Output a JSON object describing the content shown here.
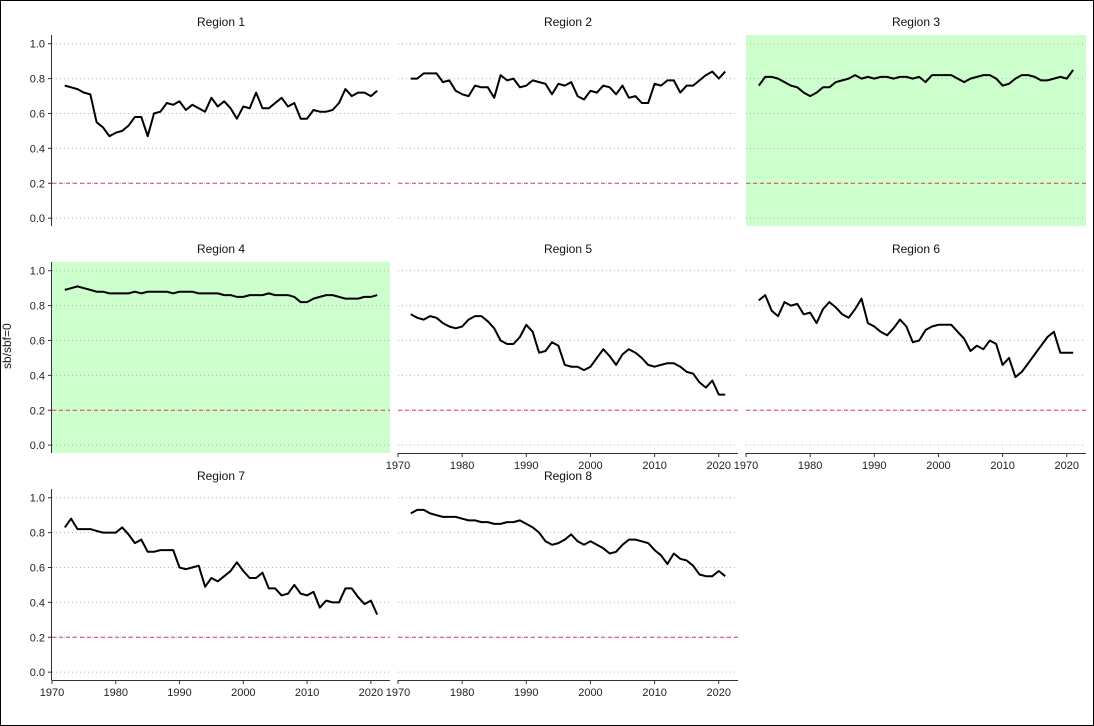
{
  "figure": {
    "ylabel": "sb/sbf=0",
    "reference_line": {
      "y": 0.2,
      "color": "#e0404a",
      "style": "dashed"
    },
    "highlight_color": "#ccffcc",
    "line_color": "#000000",
    "grid": "horizontal dotted"
  },
  "chart_data": [
    {
      "type": "line",
      "title": "Region 1",
      "highlighted": false,
      "xlim": [
        1970,
        2023
      ],
      "ylim": [
        0,
        1
      ],
      "xticks": [
        "1970",
        "1980",
        "1990",
        "2000",
        "2010",
        "2020"
      ],
      "yticks": [
        "0.0",
        "0.2",
        "0.4",
        "0.6",
        "0.8",
        "1.0"
      ],
      "x": [
        1972,
        1973,
        1974,
        1975,
        1976,
        1977,
        1978,
        1979,
        1980,
        1981,
        1982,
        1983,
        1984,
        1985,
        1986,
        1987,
        1988,
        1989,
        1990,
        1991,
        1992,
        1993,
        1994,
        1995,
        1996,
        1997,
        1998,
        1999,
        2000,
        2001,
        2002,
        2003,
        2004,
        2005,
        2006,
        2007,
        2008,
        2009,
        2010,
        2011,
        2012,
        2013,
        2014,
        2015,
        2016,
        2017,
        2018,
        2019,
        2020,
        2021
      ],
      "series": [
        {
          "values": [
            0.76,
            0.75,
            0.74,
            0.72,
            0.71,
            0.55,
            0.52,
            0.47,
            0.49,
            0.5,
            0.53,
            0.58,
            0.58,
            0.47,
            0.6,
            0.61,
            0.66,
            0.65,
            0.67,
            0.62,
            0.65,
            0.63,
            0.61,
            0.69,
            0.64,
            0.67,
            0.63,
            0.57,
            0.64,
            0.63,
            0.72,
            0.63,
            0.63,
            0.66,
            0.69,
            0.64,
            0.66,
            0.57,
            0.57,
            0.62,
            0.61,
            0.61,
            0.62,
            0.66,
            0.74,
            0.7,
            0.72,
            0.72,
            0.7,
            0.73
          ]
        }
      ]
    },
    {
      "type": "line",
      "title": "Region 2",
      "highlighted": false,
      "xlim": [
        1970,
        2023
      ],
      "ylim": [
        0,
        1
      ],
      "xticks": [
        "1970",
        "1980",
        "1990",
        "2000",
        "2010",
        "2020"
      ],
      "yticks": [
        "0.0",
        "0.2",
        "0.4",
        "0.6",
        "0.8",
        "1.0"
      ],
      "x": [
        1972,
        1973,
        1974,
        1975,
        1976,
        1977,
        1978,
        1979,
        1980,
        1981,
        1982,
        1983,
        1984,
        1985,
        1986,
        1987,
        1988,
        1989,
        1990,
        1991,
        1992,
        1993,
        1994,
        1995,
        1996,
        1997,
        1998,
        1999,
        2000,
        2001,
        2002,
        2003,
        2004,
        2005,
        2006,
        2007,
        2008,
        2009,
        2010,
        2011,
        2012,
        2013,
        2014,
        2015,
        2016,
        2017,
        2018,
        2019,
        2020,
        2021
      ],
      "series": [
        {
          "values": [
            0.8,
            0.8,
            0.83,
            0.83,
            0.83,
            0.78,
            0.79,
            0.73,
            0.71,
            0.7,
            0.76,
            0.75,
            0.75,
            0.69,
            0.82,
            0.79,
            0.8,
            0.75,
            0.76,
            0.79,
            0.78,
            0.77,
            0.71,
            0.77,
            0.76,
            0.78,
            0.7,
            0.68,
            0.73,
            0.72,
            0.76,
            0.75,
            0.71,
            0.76,
            0.69,
            0.7,
            0.66,
            0.66,
            0.77,
            0.76,
            0.79,
            0.79,
            0.72,
            0.76,
            0.76,
            0.79,
            0.82,
            0.84,
            0.8,
            0.84
          ]
        }
      ]
    },
    {
      "type": "line",
      "title": "Region 3",
      "highlighted": true,
      "xlim": [
        1970,
        2023
      ],
      "ylim": [
        0,
        1
      ],
      "xticks": [
        "1970",
        "1980",
        "1990",
        "2000",
        "2010",
        "2020"
      ],
      "yticks": [
        "0.0",
        "0.2",
        "0.4",
        "0.6",
        "0.8",
        "1.0"
      ],
      "x": [
        1972,
        1973,
        1974,
        1975,
        1976,
        1977,
        1978,
        1979,
        1980,
        1981,
        1982,
        1983,
        1984,
        1985,
        1986,
        1987,
        1988,
        1989,
        1990,
        1991,
        1992,
        1993,
        1994,
        1995,
        1996,
        1997,
        1998,
        1999,
        2000,
        2001,
        2002,
        2003,
        2004,
        2005,
        2006,
        2007,
        2008,
        2009,
        2010,
        2011,
        2012,
        2013,
        2014,
        2015,
        2016,
        2017,
        2018,
        2019,
        2020,
        2021
      ],
      "series": [
        {
          "values": [
            0.76,
            0.81,
            0.81,
            0.8,
            0.78,
            0.76,
            0.75,
            0.72,
            0.7,
            0.72,
            0.75,
            0.75,
            0.78,
            0.79,
            0.8,
            0.82,
            0.8,
            0.81,
            0.8,
            0.81,
            0.81,
            0.8,
            0.81,
            0.81,
            0.8,
            0.81,
            0.78,
            0.82,
            0.82,
            0.82,
            0.82,
            0.8,
            0.78,
            0.8,
            0.81,
            0.82,
            0.82,
            0.8,
            0.76,
            0.77,
            0.8,
            0.82,
            0.82,
            0.81,
            0.79,
            0.79,
            0.8,
            0.81,
            0.8,
            0.85
          ]
        }
      ]
    },
    {
      "type": "line",
      "title": "Region 4",
      "highlighted": true,
      "xlim": [
        1970,
        2023
      ],
      "ylim": [
        0,
        1
      ],
      "xticks": [
        "1970",
        "1980",
        "1990",
        "2000",
        "2010",
        "2020"
      ],
      "yticks": [
        "0.0",
        "0.2",
        "0.4",
        "0.6",
        "0.8",
        "1.0"
      ],
      "x": [
        1972,
        1973,
        1974,
        1975,
        1976,
        1977,
        1978,
        1979,
        1980,
        1981,
        1982,
        1983,
        1984,
        1985,
        1986,
        1987,
        1988,
        1989,
        1990,
        1991,
        1992,
        1993,
        1994,
        1995,
        1996,
        1997,
        1998,
        1999,
        2000,
        2001,
        2002,
        2003,
        2004,
        2005,
        2006,
        2007,
        2008,
        2009,
        2010,
        2011,
        2012,
        2013,
        2014,
        2015,
        2016,
        2017,
        2018,
        2019,
        2020,
        2021
      ],
      "series": [
        {
          "values": [
            0.89,
            0.9,
            0.91,
            0.9,
            0.89,
            0.88,
            0.88,
            0.87,
            0.87,
            0.87,
            0.87,
            0.88,
            0.87,
            0.88,
            0.88,
            0.88,
            0.88,
            0.87,
            0.88,
            0.88,
            0.88,
            0.87,
            0.87,
            0.87,
            0.87,
            0.86,
            0.86,
            0.85,
            0.85,
            0.86,
            0.86,
            0.86,
            0.87,
            0.86,
            0.86,
            0.86,
            0.85,
            0.82,
            0.82,
            0.84,
            0.85,
            0.86,
            0.86,
            0.85,
            0.84,
            0.84,
            0.84,
            0.85,
            0.85,
            0.86
          ]
        }
      ]
    },
    {
      "type": "line",
      "title": "Region 5",
      "highlighted": false,
      "xlim": [
        1970,
        2023
      ],
      "ylim": [
        0,
        1
      ],
      "xticks": [
        "1970",
        "1980",
        "1990",
        "2000",
        "2010",
        "2020"
      ],
      "yticks": [
        "0.0",
        "0.2",
        "0.4",
        "0.6",
        "0.8",
        "1.0"
      ],
      "x": [
        1972,
        1973,
        1974,
        1975,
        1976,
        1977,
        1978,
        1979,
        1980,
        1981,
        1982,
        1983,
        1984,
        1985,
        1986,
        1987,
        1988,
        1989,
        1990,
        1991,
        1992,
        1993,
        1994,
        1995,
        1996,
        1997,
        1998,
        1999,
        2000,
        2001,
        2002,
        2003,
        2004,
        2005,
        2006,
        2007,
        2008,
        2009,
        2010,
        2011,
        2012,
        2013,
        2014,
        2015,
        2016,
        2017,
        2018,
        2019,
        2020,
        2021
      ],
      "series": [
        {
          "values": [
            0.75,
            0.73,
            0.72,
            0.74,
            0.73,
            0.7,
            0.68,
            0.67,
            0.68,
            0.72,
            0.74,
            0.74,
            0.71,
            0.67,
            0.6,
            0.58,
            0.58,
            0.62,
            0.69,
            0.65,
            0.53,
            0.54,
            0.59,
            0.57,
            0.46,
            0.45,
            0.45,
            0.43,
            0.45,
            0.5,
            0.55,
            0.51,
            0.46,
            0.52,
            0.55,
            0.53,
            0.5,
            0.46,
            0.45,
            0.46,
            0.47,
            0.47,
            0.45,
            0.42,
            0.41,
            0.36,
            0.33,
            0.37,
            0.29,
            0.29
          ]
        }
      ]
    },
    {
      "type": "line",
      "title": "Region 6",
      "highlighted": false,
      "xlim": [
        1970,
        2023
      ],
      "ylim": [
        0,
        1
      ],
      "xticks": [
        "1970",
        "1980",
        "1990",
        "2000",
        "2010",
        "2020"
      ],
      "yticks": [
        "0.0",
        "0.2",
        "0.4",
        "0.6",
        "0.8",
        "1.0"
      ],
      "x": [
        1972,
        1973,
        1974,
        1975,
        1976,
        1977,
        1978,
        1979,
        1980,
        1981,
        1982,
        1983,
        1984,
        1985,
        1986,
        1987,
        1988,
        1989,
        1990,
        1991,
        1992,
        1993,
        1994,
        1995,
        1996,
        1997,
        1998,
        1999,
        2000,
        2001,
        2002,
        2003,
        2004,
        2005,
        2006,
        2007,
        2008,
        2009,
        2010,
        2011,
        2012,
        2013,
        2014,
        2015,
        2016,
        2017,
        2018,
        2019,
        2020,
        2021
      ],
      "series": [
        {
          "values": [
            0.83,
            0.86,
            0.77,
            0.74,
            0.82,
            0.8,
            0.81,
            0.75,
            0.76,
            0.7,
            0.78,
            0.82,
            0.79,
            0.75,
            0.73,
            0.78,
            0.84,
            0.7,
            0.68,
            0.65,
            0.63,
            0.67,
            0.72,
            0.68,
            0.59,
            0.6,
            0.66,
            0.68,
            0.69,
            0.69,
            0.69,
            0.65,
            0.61,
            0.54,
            0.57,
            0.55,
            0.6,
            0.58,
            0.46,
            0.5,
            0.39,
            0.42,
            0.47,
            0.52,
            0.57,
            0.62,
            0.65,
            0.53,
            0.53,
            0.53
          ]
        }
      ]
    },
    {
      "type": "line",
      "title": "Region 7",
      "highlighted": false,
      "xlim": [
        1970,
        2023
      ],
      "ylim": [
        0,
        1
      ],
      "xticks": [
        "1970",
        "1980",
        "1990",
        "2000",
        "2010",
        "2020"
      ],
      "yticks": [
        "0.0",
        "0.2",
        "0.4",
        "0.6",
        "0.8",
        "1.0"
      ],
      "x": [
        1972,
        1973,
        1974,
        1975,
        1976,
        1977,
        1978,
        1979,
        1980,
        1981,
        1982,
        1983,
        1984,
        1985,
        1986,
        1987,
        1988,
        1989,
        1990,
        1991,
        1992,
        1993,
        1994,
        1995,
        1996,
        1997,
        1998,
        1999,
        2000,
        2001,
        2002,
        2003,
        2004,
        2005,
        2006,
        2007,
        2008,
        2009,
        2010,
        2011,
        2012,
        2013,
        2014,
        2015,
        2016,
        2017,
        2018,
        2019,
        2020,
        2021
      ],
      "series": [
        {
          "values": [
            0.83,
            0.88,
            0.82,
            0.82,
            0.82,
            0.81,
            0.8,
            0.8,
            0.8,
            0.83,
            0.79,
            0.74,
            0.76,
            0.69,
            0.69,
            0.7,
            0.7,
            0.7,
            0.6,
            0.59,
            0.6,
            0.61,
            0.49,
            0.54,
            0.52,
            0.55,
            0.58,
            0.63,
            0.58,
            0.54,
            0.54,
            0.57,
            0.48,
            0.48,
            0.44,
            0.45,
            0.5,
            0.45,
            0.44,
            0.46,
            0.37,
            0.41,
            0.4,
            0.4,
            0.48,
            0.48,
            0.43,
            0.39,
            0.41,
            0.33
          ]
        }
      ]
    },
    {
      "type": "line",
      "title": "Region 8",
      "highlighted": false,
      "xlim": [
        1970,
        2023
      ],
      "ylim": [
        0,
        1
      ],
      "xticks": [
        "1970",
        "1980",
        "1990",
        "2000",
        "2010",
        "2020"
      ],
      "yticks": [
        "0.0",
        "0.2",
        "0.4",
        "0.6",
        "0.8",
        "1.0"
      ],
      "x": [
        1972,
        1973,
        1974,
        1975,
        1976,
        1977,
        1978,
        1979,
        1980,
        1981,
        1982,
        1983,
        1984,
        1985,
        1986,
        1987,
        1988,
        1989,
        1990,
        1991,
        1992,
        1993,
        1994,
        1995,
        1996,
        1997,
        1998,
        1999,
        2000,
        2001,
        2002,
        2003,
        2004,
        2005,
        2006,
        2007,
        2008,
        2009,
        2010,
        2011,
        2012,
        2013,
        2014,
        2015,
        2016,
        2017,
        2018,
        2019,
        2020,
        2021
      ],
      "series": [
        {
          "values": [
            0.91,
            0.93,
            0.93,
            0.91,
            0.9,
            0.89,
            0.89,
            0.89,
            0.88,
            0.87,
            0.87,
            0.86,
            0.86,
            0.85,
            0.85,
            0.86,
            0.86,
            0.87,
            0.85,
            0.83,
            0.8,
            0.75,
            0.73,
            0.74,
            0.76,
            0.79,
            0.75,
            0.73,
            0.75,
            0.73,
            0.71,
            0.68,
            0.69,
            0.73,
            0.76,
            0.76,
            0.75,
            0.74,
            0.7,
            0.67,
            0.62,
            0.68,
            0.65,
            0.64,
            0.61,
            0.56,
            0.55,
            0.55,
            0.58,
            0.55
          ]
        }
      ]
    }
  ]
}
